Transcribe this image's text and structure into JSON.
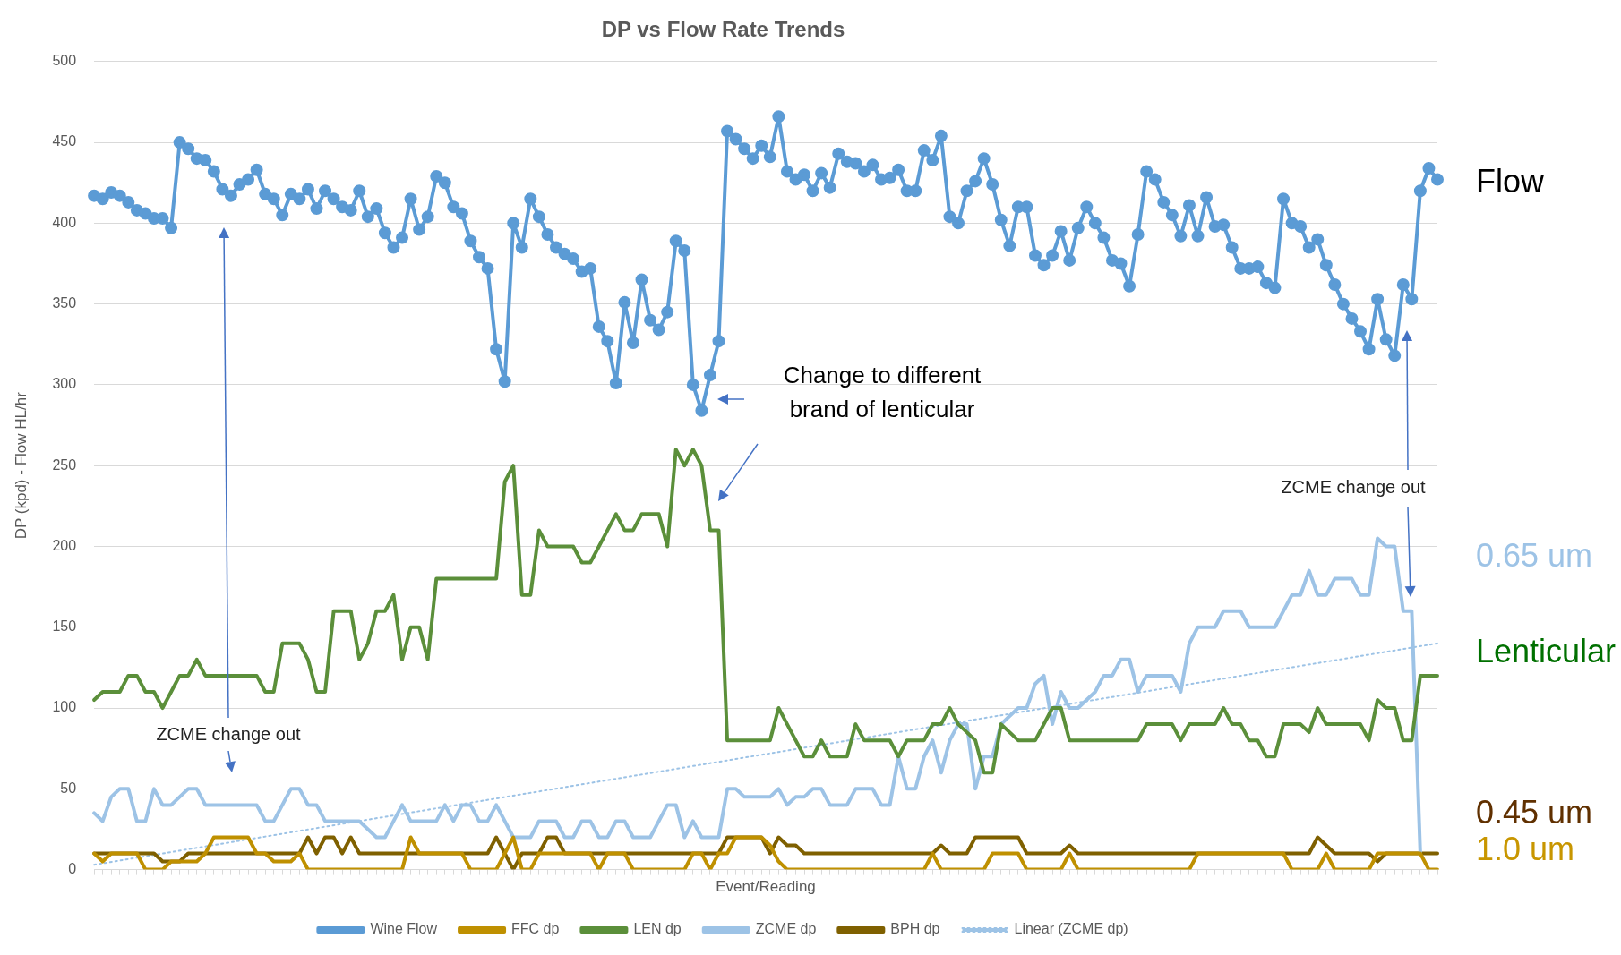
{
  "chart_data": {
    "type": "line",
    "title": "DP vs Flow Rate Trends",
    "xlabel": "Event/Reading",
    "ylabel": "DP (kpd) - Flow HL/hr",
    "categories": [
      null,
      null,
      null,
      null,
      null,
      null,
      null,
      null,
      null,
      null,
      null,
      null,
      null,
      null,
      null,
      null,
      null,
      null,
      null,
      null,
      null,
      null,
      null,
      null,
      null,
      null,
      null,
      null,
      null,
      null,
      null,
      null,
      null,
      null,
      null,
      null,
      null,
      null,
      null,
      null,
      null,
      null,
      null,
      null,
      null,
      null,
      null,
      null,
      null,
      null,
      null,
      null,
      null,
      null,
      null,
      null,
      null,
      null,
      null,
      null,
      null,
      null,
      null,
      null,
      null,
      null,
      null,
      null,
      null,
      null,
      null,
      null,
      null,
      null,
      null,
      null,
      null,
      null,
      null,
      null,
      null,
      null,
      null,
      null,
      null,
      null,
      null,
      null,
      null,
      null,
      null,
      null,
      null,
      null,
      null,
      null,
      null,
      null,
      null,
      null,
      null,
      null,
      null,
      null,
      null,
      null,
      null,
      null,
      null,
      null,
      null,
      null,
      null,
      null,
      null,
      null,
      null,
      null,
      null,
      null,
      null,
      null,
      null,
      null,
      null,
      null,
      null,
      null,
      null,
      null,
      null,
      null,
      null,
      null,
      null,
      null,
      null,
      null,
      null,
      null,
      null,
      null,
      null,
      null,
      null,
      null,
      null,
      null,
      null,
      null,
      null,
      null,
      null,
      null,
      null,
      null,
      null,
      null
    ],
    "series": [
      {
        "name": "Wine Flow",
        "color": "#5b9bd5",
        "marker": "circle",
        "values": [
          417,
          415,
          419,
          417,
          413,
          408,
          406,
          403,
          403,
          397,
          450,
          446,
          440,
          439,
          432,
          421,
          417,
          424,
          427,
          433,
          418,
          415,
          405,
          418,
          415,
          421,
          409,
          420,
          415,
          410,
          408,
          420,
          404,
          409,
          394,
          385,
          391,
          415,
          396,
          404,
          429,
          425,
          410,
          406,
          389,
          379,
          372,
          322,
          302,
          400,
          385,
          415,
          404,
          393,
          385,
          381,
          378,
          370,
          372,
          336,
          327,
          301,
          351,
          326,
          365,
          340,
          334,
          345,
          389,
          383,
          300,
          284,
          306,
          327,
          457,
          452,
          446,
          440,
          448,
          441,
          466,
          432,
          427,
          430,
          420,
          431,
          422,
          443,
          438,
          437,
          432,
          436,
          427,
          428,
          433,
          420,
          420,
          445,
          439,
          454,
          404,
          400,
          420,
          426,
          440,
          424,
          402,
          386,
          410,
          410,
          380,
          374,
          380,
          395,
          377,
          397,
          410,
          400,
          391,
          377,
          375,
          361,
          393,
          432,
          427,
          413,
          405,
          392,
          411,
          392,
          416,
          398,
          399,
          385,
          372,
          372,
          373,
          363,
          360,
          415,
          400,
          398,
          385,
          390,
          374,
          362,
          350,
          341,
          333,
          322,
          353,
          328,
          318,
          362,
          353,
          420,
          434,
          427
        ]
      },
      {
        "name": "FFC dp",
        "color": "#bf9000",
        "values": [
          10,
          5,
          10,
          10,
          10,
          10,
          0,
          0,
          0,
          5,
          5,
          5,
          5,
          10,
          20,
          20,
          20,
          20,
          20,
          10,
          10,
          5,
          5,
          5,
          10,
          0,
          0,
          0,
          0,
          0,
          0,
          0,
          0,
          0,
          0,
          0,
          0,
          20,
          10,
          10,
          10,
          10,
          10,
          10,
          0,
          0,
          0,
          0,
          10,
          20,
          0,
          0,
          10,
          10,
          10,
          10,
          10,
          10,
          10,
          0,
          10,
          10,
          10,
          0,
          0,
          0,
          0,
          0,
          0,
          0,
          10,
          10,
          0,
          10,
          10,
          20,
          20,
          20,
          20,
          15,
          5,
          0,
          0,
          0,
          0,
          0,
          0,
          0,
          0,
          0,
          0,
          0,
          0,
          0,
          0,
          0,
          0,
          0,
          10,
          0,
          0,
          0,
          0,
          0,
          0,
          10,
          10,
          10,
          10,
          0,
          0,
          0,
          0,
          0,
          10,
          0,
          0,
          0,
          0,
          0,
          0,
          0,
          0,
          0,
          0,
          0,
          0,
          0,
          0,
          10,
          10,
          10,
          10,
          10,
          10,
          10,
          10,
          10,
          10,
          10,
          0,
          0,
          0,
          0,
          10,
          0,
          0,
          0,
          0,
          0,
          10,
          10,
          10,
          10,
          10,
          10,
          0,
          0
        ]
      },
      {
        "name": "LEN dp",
        "color": "#5b8f3a",
        "values": [
          105,
          110,
          110,
          110,
          120,
          120,
          110,
          110,
          100,
          110,
          120,
          120,
          130,
          120,
          120,
          120,
          120,
          120,
          120,
          120,
          110,
          110,
          140,
          140,
          140,
          130,
          110,
          110,
          160,
          160,
          160,
          130,
          140,
          160,
          160,
          170,
          130,
          150,
          150,
          130,
          180,
          180,
          180,
          180,
          180,
          180,
          180,
          180,
          240,
          250,
          170,
          170,
          210,
          200,
          200,
          200,
          200,
          190,
          190,
          200,
          210,
          220,
          210,
          210,
          220,
          220,
          220,
          200,
          260,
          250,
          260,
          250,
          210,
          210,
          80,
          80,
          80,
          80,
          80,
          80,
          100,
          90,
          80,
          70,
          70,
          80,
          70,
          70,
          70,
          90,
          80,
          80,
          80,
          80,
          70,
          80,
          80,
          80,
          90,
          90,
          100,
          90,
          85,
          80,
          60,
          60,
          90,
          85,
          80,
          80,
          80,
          90,
          100,
          100,
          80,
          80,
          80,
          80,
          80,
          80,
          80,
          80,
          80,
          90,
          90,
          90,
          90,
          80,
          90,
          90,
          90,
          90,
          100,
          90,
          90,
          80,
          80,
          70,
          70,
          90,
          90,
          90,
          85,
          100,
          90,
          90,
          90,
          90,
          90,
          80,
          105,
          100,
          100,
          80,
          80,
          120,
          120,
          120
        ]
      },
      {
        "name": "ZCME dp",
        "color": "#9dc3e6",
        "values": [
          35,
          30,
          45,
          50,
          50,
          30,
          30,
          50,
          40,
          40,
          45,
          50,
          50,
          40,
          40,
          40,
          40,
          40,
          40,
          40,
          30,
          30,
          40,
          50,
          50,
          40,
          40,
          30,
          30,
          30,
          30,
          30,
          25,
          20,
          20,
          30,
          40,
          30,
          30,
          30,
          30,
          40,
          30,
          40,
          40,
          30,
          30,
          40,
          30,
          20,
          20,
          20,
          30,
          30,
          30,
          20,
          20,
          30,
          30,
          20,
          20,
          30,
          30,
          20,
          20,
          20,
          30,
          40,
          40,
          20,
          30,
          20,
          20,
          20,
          50,
          50,
          45,
          45,
          45,
          45,
          50,
          40,
          45,
          45,
          50,
          50,
          40,
          40,
          40,
          50,
          50,
          50,
          40,
          40,
          70,
          50,
          50,
          70,
          80,
          60,
          80,
          90,
          90,
          50,
          70,
          70,
          90,
          95,
          100,
          100,
          115,
          120,
          90,
          110,
          100,
          100,
          105,
          110,
          120,
          120,
          130,
          130,
          110,
          120,
          120,
          120,
          120,
          110,
          140,
          150,
          150,
          150,
          160,
          160,
          160,
          150,
          150,
          150,
          150,
          160,
          170,
          170,
          185,
          170,
          170,
          180,
          180,
          180,
          170,
          170,
          205,
          200,
          200,
          160,
          160,
          10,
          null,
          null
        ]
      },
      {
        "name": "BPH dp",
        "color": "#7f6000",
        "values": [
          10,
          10,
          10,
          10,
          10,
          10,
          10,
          10,
          5,
          5,
          5,
          10,
          10,
          10,
          10,
          10,
          10,
          10,
          10,
          10,
          10,
          10,
          10,
          10,
          10,
          20,
          10,
          20,
          20,
          10,
          20,
          10,
          10,
          10,
          10,
          10,
          10,
          10,
          10,
          10,
          10,
          10,
          10,
          10,
          10,
          10,
          10,
          20,
          10,
          0,
          10,
          10,
          10,
          20,
          20,
          10,
          10,
          10,
          10,
          10,
          10,
          10,
          10,
          10,
          10,
          10,
          10,
          10,
          10,
          10,
          10,
          10,
          10,
          10,
          20,
          20,
          20,
          20,
          20,
          10,
          20,
          15,
          15,
          10,
          10,
          10,
          10,
          10,
          10,
          10,
          10,
          10,
          10,
          10,
          10,
          10,
          10,
          10,
          10,
          15,
          10,
          10,
          10,
          20,
          20,
          20,
          20,
          20,
          20,
          10,
          10,
          10,
          10,
          10,
          15,
          10,
          10,
          10,
          10,
          10,
          10,
          10,
          10,
          10,
          10,
          10,
          10,
          10,
          10,
          10,
          10,
          10,
          10,
          10,
          10,
          10,
          10,
          10,
          10,
          10,
          10,
          10,
          10,
          20,
          15,
          10,
          10,
          10,
          10,
          10,
          5,
          10,
          10,
          10,
          10,
          10,
          10,
          10
        ]
      },
      {
        "name": "Linear (ZCME dp)",
        "color": "#9dc3e6",
        "line_style": "dotted",
        "values": [
          3,
          null,
          null,
          null,
          null,
          null,
          null,
          null,
          null,
          null,
          null,
          null,
          null,
          null,
          null,
          null,
          null,
          null,
          null,
          null,
          null,
          null,
          null,
          null,
          null,
          null,
          null,
          null,
          null,
          null,
          null,
          null,
          null,
          null,
          null,
          null,
          null,
          null,
          null,
          null,
          null,
          null,
          null,
          null,
          null,
          null,
          null,
          null,
          null,
          null,
          null,
          null,
          null,
          null,
          null,
          null,
          null,
          null,
          null,
          null,
          null,
          null,
          null,
          null,
          null,
          null,
          null,
          null,
          null,
          null,
          null,
          null,
          null,
          null,
          null,
          null,
          null,
          null,
          null,
          null,
          null,
          null,
          null,
          null,
          null,
          null,
          null,
          null,
          null,
          null,
          null,
          null,
          null,
          null,
          null,
          null,
          null,
          null,
          null,
          null,
          null,
          null,
          null,
          null,
          null,
          null,
          null,
          null,
          null,
          null,
          null,
          null,
          null,
          null,
          null,
          null,
          null,
          null,
          null,
          null,
          null,
          null,
          null,
          null,
          null,
          null,
          null,
          null,
          null,
          null,
          null,
          null,
          null,
          null,
          null,
          null,
          null,
          null,
          null,
          null,
          null,
          null,
          null,
          null,
          null,
          null,
          null,
          null,
          null,
          null,
          null,
          null,
          null,
          null,
          null,
          null,
          null,
          140
        ]
      }
    ],
    "ylim": [
      0,
      500
    ],
    "yticks": [
      0,
      50,
      100,
      150,
      200,
      250,
      300,
      350,
      400,
      450,
      500
    ],
    "grid": "y",
    "legend": "bottom",
    "tick_labels": "y",
    "annotations": [
      "ZCME change out",
      "Change to different brand of lenticular",
      "ZCME change out",
      "Flow",
      "0.65 um",
      "Lenticular",
      "0.45 um",
      "1.0 um"
    ]
  }
}
